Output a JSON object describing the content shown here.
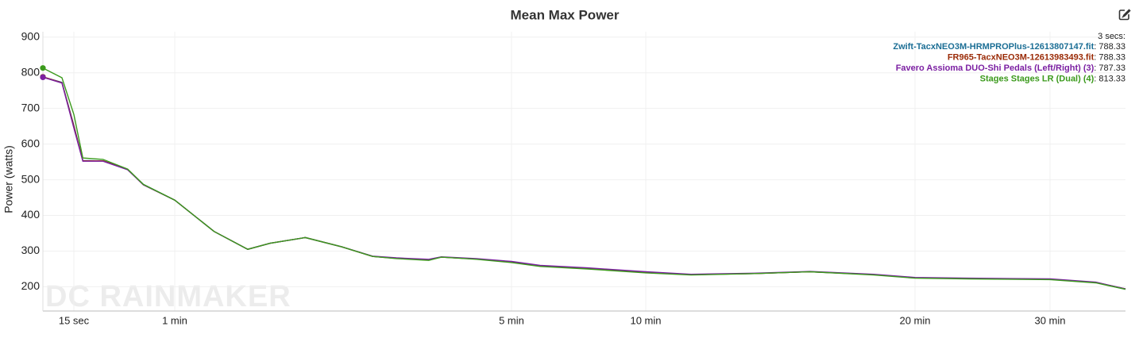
{
  "chart_data": {
    "type": "line",
    "title": "Mean Max Power",
    "y_label": "Power (watts)",
    "watermark": "DC RAINMAKER",
    "legend_header": "3 secs:",
    "legend_separator": ":",
    "grid": true,
    "x": [
      3,
      5.5,
      10.4,
      15,
      19,
      28,
      39,
      46,
      60,
      88,
      112,
      128,
      153,
      179,
      201,
      218,
      241,
      250,
      275,
      300,
      364,
      470,
      600,
      701,
      842,
      966,
      1108,
      1200,
      1440,
      1800,
      2000,
      2130
    ],
    "xlim": [
      3,
      2130
    ],
    "xticks": [
      {
        "value": 15,
        "label": "15 sec"
      },
      {
        "value": 60,
        "label": "1 min"
      },
      {
        "value": 300,
        "label": "5 min"
      },
      {
        "value": 600,
        "label": "10 min"
      },
      {
        "value": 1200,
        "label": "20 min"
      },
      {
        "value": 1800,
        "label": "30 min"
      }
    ],
    "ylim": [
      132,
      915
    ],
    "yticks": [
      200,
      300,
      400,
      500,
      600,
      700,
      800,
      900
    ],
    "series": [
      {
        "name": "Zwift-TacxNEO3M-HRMPROPlus-12613807147.fit",
        "color": "#1b6e95",
        "values": [
          788.33,
          783,
          773,
          652,
          554,
          553,
          529,
          487,
          443,
          355,
          305,
          322,
          338,
          312,
          285,
          280,
          276,
          283,
          278,
          270,
          259,
          252,
          241,
          234,
          237,
          242,
          234,
          225,
          223,
          221,
          212,
          193
        ]
      },
      {
        "name": "FR965-TacxNEO3M-12613983493.fit",
        "color": "#9a2a06",
        "values": [
          788.33,
          783,
          772,
          650,
          553,
          553,
          529,
          486,
          443,
          355,
          305,
          322,
          338,
          312,
          285,
          280,
          276,
          283,
          278,
          270,
          259,
          252,
          241,
          234,
          237,
          242,
          234,
          225,
          223,
          221,
          212,
          194
        ]
      },
      {
        "name": "Favero Assioma DUO-Shi Pedals (Left/Right) (3)",
        "color": "#7b1fa2",
        "values": [
          787.33,
          782,
          771,
          645,
          552,
          552,
          528,
          486,
          443,
          355,
          305,
          322,
          338,
          312,
          286,
          281,
          277,
          284,
          279,
          271,
          260,
          253,
          242,
          235,
          238,
          243,
          235,
          226,
          224,
          222,
          213,
          194
        ]
      },
      {
        "name": "Stages Stages LR (Dual) (4)",
        "color": "#3b9a1c",
        "values": [
          813.33,
          804,
          786,
          683,
          561,
          557,
          530,
          487,
          443,
          355,
          305,
          322,
          338,
          312,
          285,
          279,
          274,
          283,
          277,
          268,
          257,
          250,
          239,
          233,
          237,
          242,
          233,
          224,
          222,
          220,
          211,
          193
        ]
      }
    ]
  }
}
